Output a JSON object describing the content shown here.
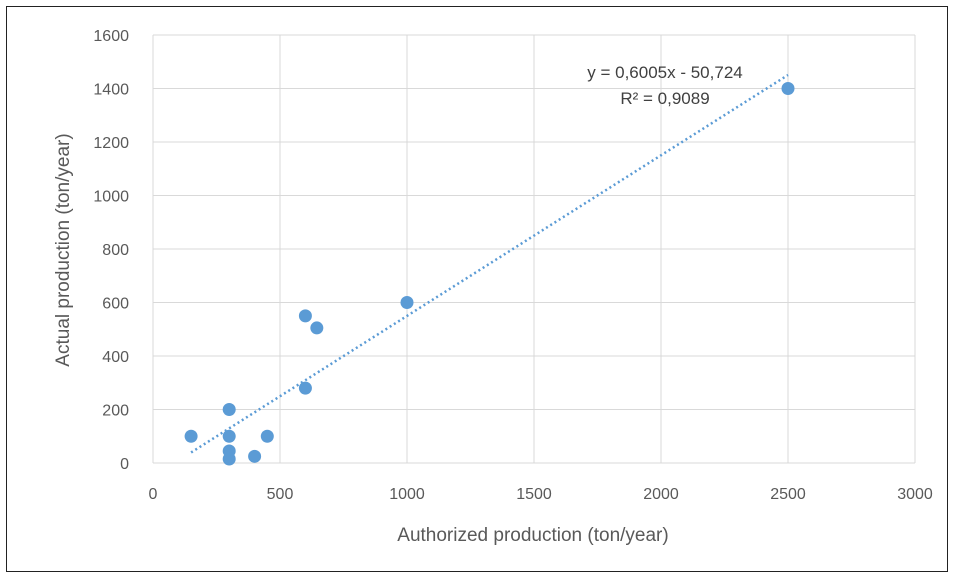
{
  "chart_data": {
    "type": "scatter",
    "title": "",
    "xlabel": "Authorized production (ton/year)",
    "ylabel": "Actual production (ton/year)",
    "xlim": [
      0,
      3000
    ],
    "ylim": [
      0,
      1600
    ],
    "xticks": [
      0,
      500,
      1000,
      1500,
      2000,
      2500,
      3000
    ],
    "yticks": [
      0,
      200,
      400,
      600,
      800,
      1000,
      1200,
      1400,
      1600
    ],
    "grid": true,
    "legend": "none",
    "marker_color": "#5B9BD5",
    "trendline_color": "#5B9BD5",
    "series": [
      {
        "points": [
          {
            "x": 150,
            "y": 100
          },
          {
            "x": 300,
            "y": 200
          },
          {
            "x": 300,
            "y": 100
          },
          {
            "x": 300,
            "y": 45
          },
          {
            "x": 300,
            "y": 15
          },
          {
            "x": 400,
            "y": 25
          },
          {
            "x": 450,
            "y": 100
          },
          {
            "x": 600,
            "y": 550
          },
          {
            "x": 600,
            "y": 280
          },
          {
            "x": 645,
            "y": 505
          },
          {
            "x": 1000,
            "y": 600
          },
          {
            "x": 2500,
            "y": 1400
          }
        ]
      }
    ],
    "trendline": {
      "type": "linear",
      "slope": 0.6005,
      "intercept": -50.724,
      "x_range": [
        150,
        2500
      ],
      "equation_text": "y = 0,6005x - 50,724",
      "r2_text": "R² = 0,9089"
    }
  }
}
